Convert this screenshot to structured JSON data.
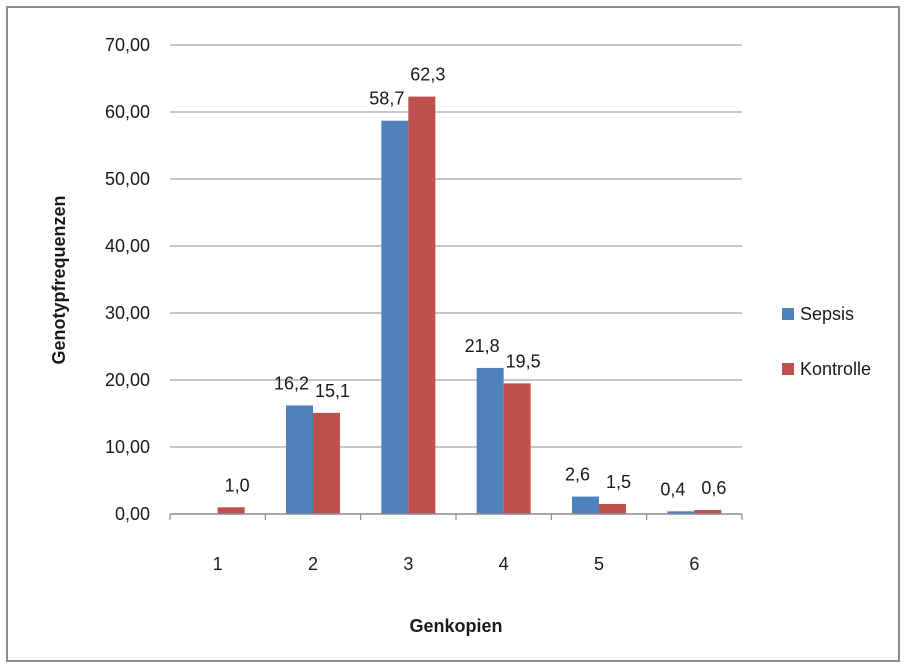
{
  "chart_data": {
    "type": "bar",
    "title": "",
    "xlabel": "Genkopien",
    "ylabel": "Genotypfrequenzen",
    "categories": [
      "1",
      "2",
      "3",
      "4",
      "5",
      "6"
    ],
    "ylim": [
      0,
      70
    ],
    "yticks": [
      "0,00",
      "10,00",
      "20,00",
      "30,00",
      "40,00",
      "50,00",
      "60,00",
      "70,00"
    ],
    "grid": true,
    "legend_position": "right",
    "series": [
      {
        "name": "Sepsis",
        "color": "#4f81bd",
        "values": [
          null,
          16.2,
          58.7,
          21.8,
          2.6,
          0.4
        ],
        "labels": [
          "",
          "16,2",
          "58,7",
          "21,8",
          "2,6",
          "0,4"
        ]
      },
      {
        "name": "Kontrolle",
        "color": "#c0504d",
        "values": [
          1.0,
          15.1,
          62.3,
          19.5,
          1.5,
          0.6
        ],
        "labels": [
          "1,0",
          "15,1",
          "62,3",
          "19,5",
          "1,5",
          "0,6"
        ]
      }
    ]
  }
}
